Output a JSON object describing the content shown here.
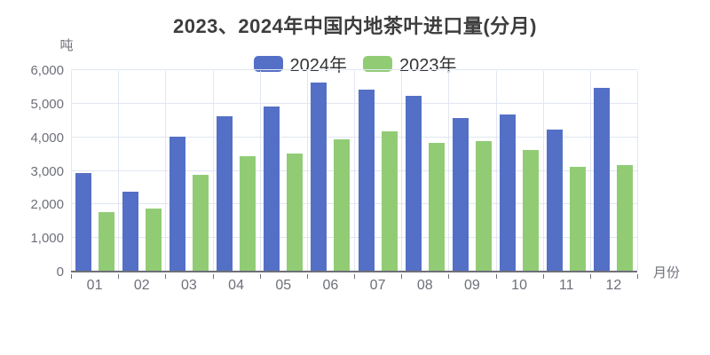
{
  "page": {
    "title": "2023、2024年中国内地茶叶进口量(分月)"
  },
  "legend": {
    "items": [
      {
        "label": "2024年",
        "color": "#5470C6"
      },
      {
        "label": "2023年",
        "color": "#91CC75"
      }
    ]
  },
  "y_axis": {
    "unit": "吨",
    "tick_labels": [
      "0",
      "1,000",
      "2,000",
      "3,000",
      "4,000",
      "5,000",
      "6,000"
    ],
    "tick_values": [
      0,
      1000,
      2000,
      3000,
      4000,
      5000,
      6000
    ],
    "max": 6000
  },
  "x_axis": {
    "name": "月份",
    "labels": [
      "01",
      "02",
      "03",
      "04",
      "05",
      "06",
      "07",
      "08",
      "09",
      "10",
      "11",
      "12"
    ]
  },
  "chart_data": {
    "type": "bar",
    "title": "2023、2024年中国内地茶叶进口量(分月)",
    "categories": [
      "01",
      "02",
      "03",
      "04",
      "05",
      "06",
      "07",
      "08",
      "09",
      "10",
      "11",
      "12"
    ],
    "series": [
      {
        "name": "2024年",
        "color": "#5470C6",
        "values": [
          2900,
          2350,
          4000,
          4600,
          4900,
          5600,
          5400,
          5200,
          4550,
          4650,
          4200,
          5450
        ]
      },
      {
        "name": "2023年",
        "color": "#91CC75",
        "values": [
          1750,
          1850,
          2850,
          3400,
          3500,
          3900,
          4150,
          3800,
          3850,
          3600,
          3100,
          3150
        ]
      }
    ],
    "xlabel": "月份",
    "ylabel": "吨",
    "ylim": [
      0,
      6000
    ],
    "grid": true,
    "legend_position": "top"
  },
  "colors": {
    "grid_line": "#E0E6F1",
    "axis_line": "#6E7079",
    "tick_label": "#6E7079",
    "title_text": "#3D3D3D",
    "legend_text": "#333333",
    "background": "#FFFFFF"
  }
}
